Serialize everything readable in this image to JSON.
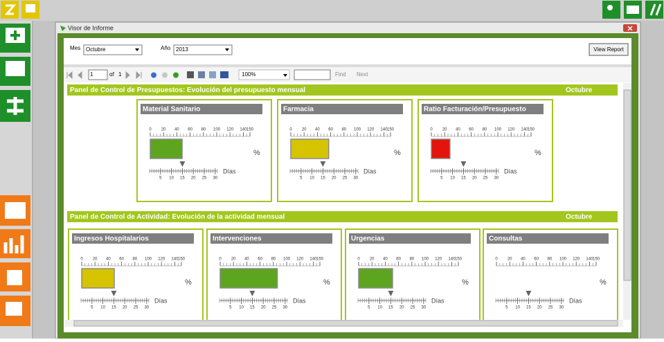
{
  "window": {
    "title": "Visor de Informe"
  },
  "params": {
    "mes_label": "Mes",
    "mes_value": "Octubre",
    "ano_label": "Año",
    "ano_value": "2013",
    "button": "View Report"
  },
  "toolbar": {
    "page": 1,
    "of": "of",
    "total": 1,
    "zoom": "100%",
    "find": "Find",
    "next": "Next"
  },
  "percent_scale": [
    0,
    20,
    40,
    60,
    80,
    100,
    120,
    140,
    150
  ],
  "days_scale": [
    5,
    10,
    15,
    20,
    25,
    30
  ],
  "percent_unit": "%",
  "days_label": "Días",
  "sections": [
    {
      "title": "Panel de Control de Presupuestos: Evolución del presupuesto mensual",
      "month": "Octubre",
      "gauges": [
        {
          "title": "Material Sanitario",
          "value": 48,
          "color": "#5ea51f",
          "day": 15
        },
        {
          "title": "Farmacia",
          "value": 57,
          "color": "#d6c400",
          "day": 15
        },
        {
          "title": "Ratio Facturación/Presupuesto",
          "value": 28,
          "color": "#e3140c",
          "day": 15
        }
      ]
    },
    {
      "title": "Panel de Control de Actividad: Evolución de la actividad mensual",
      "month": "Octubre",
      "gauges": [
        {
          "title": "Ingresos Hospitalarios",
          "value": 49,
          "color": "#d6c400",
          "day": 15
        },
        {
          "title": "Intervenciones",
          "value": 86,
          "color": "#5ea51f",
          "day": 15
        },
        {
          "title": "Urgencias",
          "value": 51,
          "color": "#5ea51f",
          "day": 15
        },
        {
          "title": "Consultas",
          "value": null,
          "color": "#5ea51f",
          "day": 15
        }
      ]
    }
  ]
}
